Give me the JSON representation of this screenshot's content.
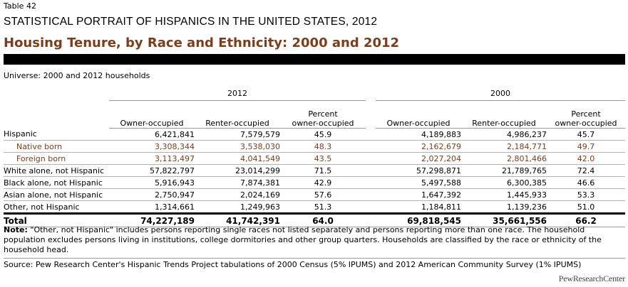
{
  "table_number": "Table 42",
  "super_title": "STATISTICAL PORTRAIT OF HISPANICS IN THE UNITED STATES, 2012",
  "title": "Housing Tenure, by Race and Ethnicity: 2000 and 2012",
  "universe": "Universe: 2000 and 2012 households",
  "years": [
    "2012",
    "2000"
  ],
  "columns": {
    "owner": "Owner-occupied",
    "renter": "Renter-occupied",
    "pct_line1": "Percent",
    "pct_line2": "owner-occupied"
  },
  "rows": [
    {
      "label": "Hispanic",
      "o12": "6,421,841",
      "r12": "7,579,579",
      "p12": "45.9",
      "o00": "4,189,883",
      "r00": "4,986,237",
      "p00": "45.7"
    },
    {
      "label": "Native born",
      "o12": "3,308,344",
      "r12": "3,538,030",
      "p12": "48.3",
      "o00": "2,162,679",
      "r00": "2,184,771",
      "p00": "49.7"
    },
    {
      "label": "Foreign born",
      "o12": "3,113,497",
      "r12": "4,041,549",
      "p12": "43.5",
      "o00": "2,027,204",
      "r00": "2,801,466",
      "p00": "42.0"
    },
    {
      "label": "White alone, not Hispanic",
      "o12": "57,822,797",
      "r12": "23,014,299",
      "p12": "71.5",
      "o00": "57,298,871",
      "r00": "21,789,765",
      "p00": "72.4"
    },
    {
      "label": "Black alone, not Hispanic",
      "o12": "5,916,943",
      "r12": "7,874,381",
      "p12": "42.9",
      "o00": "5,497,588",
      "r00": "6,300,385",
      "p00": "46.6"
    },
    {
      "label": "Asian alone, not Hispanic",
      "o12": "2,750,947",
      "r12": "2,024,169",
      "p12": "57.6",
      "o00": "1,647,392",
      "r00": "1,445,933",
      "p00": "53.3"
    },
    {
      "label": "Other, not Hispanic",
      "o12": "1,314,661",
      "r12": "1,249,963",
      "p12": "51.3",
      "o00": "1,184,811",
      "r00": "1,139,236",
      "p00": "51.0"
    },
    {
      "label": "Total",
      "o12": "74,227,189",
      "r12": "41,742,391",
      "p12": "64.0",
      "o00": "69,818,545",
      "r00": "35,661,556",
      "p00": "66.2"
    }
  ],
  "note_label": "Note:",
  "note_text": " \"Other, not Hispanic\" includes persons reporting single races not listed separately and persons reporting more than one race. The household population excludes persons living in institutions, college dormitories and other group quarters. Households are classified by the race or ethnicity of the household head.",
  "source": "Source: Pew Research Center's Hispanic Trends Project tabulations of 2000 Census (5% IPUMS) and 2012 American Community Survey (1% IPUMS)",
  "logo": "PewResearchCenter"
}
